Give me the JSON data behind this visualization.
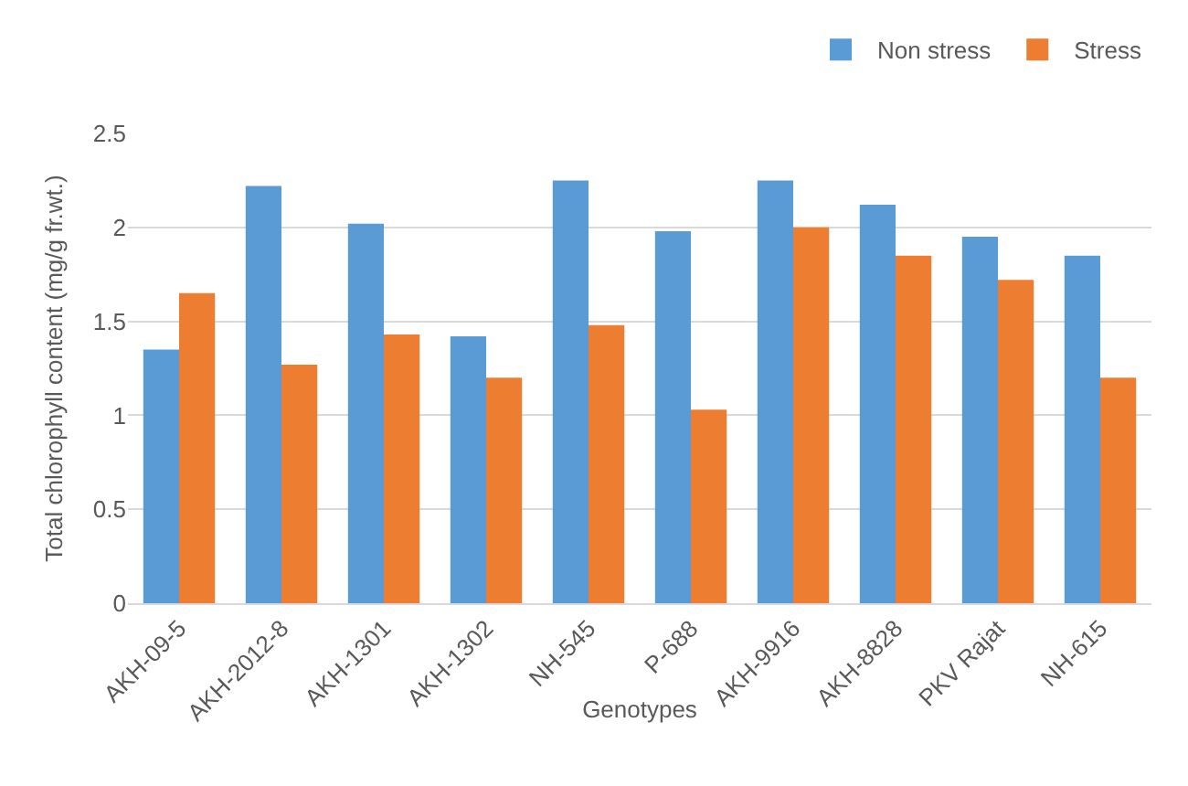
{
  "chart_data": {
    "type": "bar",
    "xlabel": "Genotypes",
    "ylabel": "Total chlorophyll content (mg/g fr.wt.)",
    "categories": [
      "AKH-09-5",
      "AKH-2012-8",
      "AKH-1301",
      "AKH-1302",
      "NH-545",
      "P-688",
      "AKH-9916",
      "AKH-8828",
      "PKV Rajat",
      "NH-615"
    ],
    "series": [
      {
        "name": "Non stress",
        "color": "#5b9bd5",
        "values": [
          1.35,
          2.22,
          2.02,
          1.42,
          2.25,
          1.98,
          2.25,
          2.12,
          1.95,
          1.85
        ]
      },
      {
        "name": "Stress",
        "color": "#ed7d31",
        "values": [
          1.65,
          1.27,
          1.43,
          1.2,
          1.48,
          1.03,
          2.0,
          1.85,
          1.72,
          1.2
        ]
      }
    ],
    "ylim": [
      0,
      2.5
    ],
    "yticks": [
      0,
      0.5,
      1,
      1.5,
      2,
      2.5
    ],
    "grid": "y",
    "legend": "top right"
  }
}
